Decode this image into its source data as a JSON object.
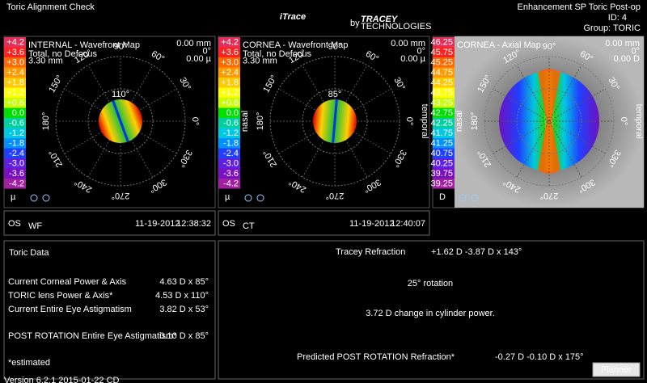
{
  "header": {
    "title": "Toric Alignment Check",
    "logo": "iTrace",
    "logo_by": "by",
    "brand": "TRACEY",
    "brand_sub": "TECHNOLOGIES",
    "exam": "Enhancement SP Toric Post-op",
    "id": "ID:  4",
    "group": "Group:  TORIC"
  },
  "ring_labels": [
    "0°",
    "30°",
    "60°",
    "90°",
    "120°",
    "150°",
    "180°",
    "210°",
    "240°",
    "270°",
    "300°",
    "330°"
  ],
  "maps": [
    {
      "title": "INTERNAL - Wavefront Map",
      "info": [
        "Total, no Defocus",
        "3.30 mm"
      ],
      "stats": [
        "0.00 mm",
        "0°",
        "0.00 µ"
      ],
      "axis": "110°",
      "scale": [
        "+4.2",
        "+3.6",
        "+3.0",
        "+2.4",
        "+1.8",
        "+1.2",
        "+0.6",
        "0.0",
        "-0.6",
        "-1.2",
        "-1.8",
        "-2.4",
        "-3.0",
        "-3.6",
        "-4.2"
      ],
      "unit": "µ"
    },
    {
      "title": "CORNEA - Wavefront Map",
      "info": [
        "Total, no Defocus",
        "3.30 mm"
      ],
      "stats": [
        "0.00 mm",
        "0°",
        "0.00 µ"
      ],
      "axis": "85°",
      "scale": [
        "+4.2",
        "+3.6",
        "+3.0",
        "+2.4",
        "+1.8",
        "+1.2",
        "+0.6",
        "0.0",
        "-0.6",
        "-1.2",
        "-1.8",
        "-2.4",
        "-3.0",
        "-3.6",
        "-4.2"
      ],
      "unit": "µ",
      "nasal": "nasal",
      "temporal": "temporal"
    },
    {
      "title": "CORNEA - Axial Map",
      "stats": [
        "0.00 mm",
        "0°",
        "0.00 D"
      ],
      "scale": [
        "46.25",
        "45.75",
        "45.25",
        "44.75",
        "44.25",
        "43.75",
        "43.25",
        "42.75",
        "42.25",
        "41.75",
        "41.25",
        "40.75",
        "40.25",
        "39.75",
        "39.25"
      ],
      "unit": "D",
      "nasal": "nasal",
      "temporal": "temporal"
    }
  ],
  "status": [
    {
      "eye": "OS",
      "source": "WF",
      "date": "11-19-2012",
      "time": "12:38:32"
    },
    {
      "eye": "OS",
      "source": "CT",
      "date": "11-19-2012",
      "time": "12:40:07"
    }
  ],
  "toric": {
    "title": "Toric Data",
    "rows": [
      {
        "label": "Current Corneal Power & Axis",
        "value": "4.63 D x 85°"
      },
      {
        "label": "TORIC lens Power & Axis*",
        "value": "4.53 D x 110°"
      },
      {
        "label": "Current Entire Eye Astigmatism",
        "value": "3.82 D x 53°"
      },
      {
        "label": "POST ROTATION Entire Eye Astigmatism*",
        "value": "0.10 D x 85°"
      }
    ],
    "note": "*estimated"
  },
  "summary": {
    "refraction_label": "Tracey Refraction",
    "refraction": "+1.62 D -3.87 D x 143°",
    "rotation": "25° rotation",
    "change": "3.72 D change in cylinder power.",
    "predicted_label": "Predicted POST ROTATION Refraction*",
    "predicted": "-0.27 D  -0.10 D x 175°",
    "button": "Planner"
  },
  "version": "Version 6.2.1 2015-01-22 CD"
}
